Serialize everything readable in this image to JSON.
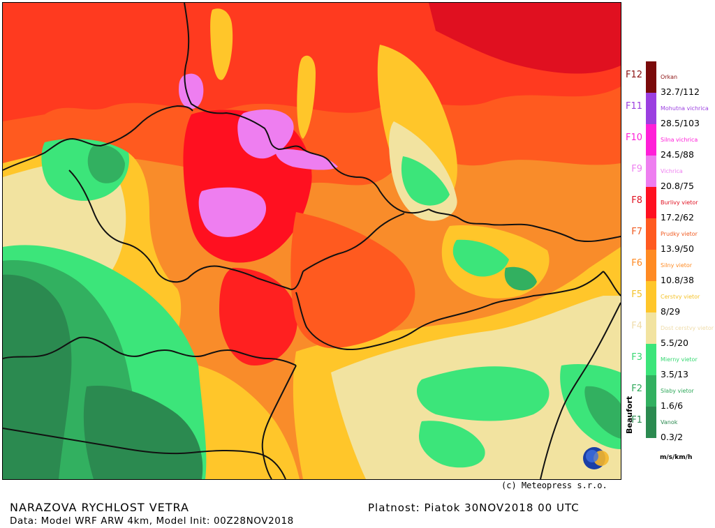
{
  "footer": {
    "title": "NARAZOVA RYCHLOST VETRA",
    "data_line": "Data: Model WRF ARW 4km, Model Init: 00Z28NOV2018",
    "validity": "Platnost: Piatok 30NOV2018 00 UTC",
    "copyright": "(c) Meteopress s.r.o."
  },
  "logo": {
    "text": "meteopress"
  },
  "legend": {
    "axis_label": "Beaufort",
    "units": "m/s/km/h",
    "classes": [
      {
        "force": "F12",
        "name": "Orkan",
        "color": "#7a0a0a",
        "force_color": "#8b1010"
      },
      {
        "force": "F11",
        "name": "Mohutna vichrica",
        "color": "#9b3fe0",
        "force_color": "#9b3fe0"
      },
      {
        "force": "F10",
        "name": "Silna vichrica",
        "color": "#ff1fd8",
        "force_color": "#ff1fd8"
      },
      {
        "force": "F9",
        "name": "Vichrica",
        "color": "#ee7ef0",
        "force_color": "#ee7ef0"
      },
      {
        "force": "F8",
        "name": "Burlivy vietor",
        "color": "#ff1020",
        "force_color": "#e01020"
      },
      {
        "force": "F7",
        "name": "Prudky vietor",
        "color": "#ff5a1f",
        "force_color": "#f05a20"
      },
      {
        "force": "F6",
        "name": "Silny vietor",
        "color": "#ff8a22",
        "force_color": "#ff8a22"
      },
      {
        "force": "F5",
        "name": "Cerstvy vietor",
        "color": "#ffc62a",
        "force_color": "#f4c22a"
      },
      {
        "force": "F4",
        "name": "Dost cerstvy vietor",
        "color": "#f2e3a0",
        "force_color": "#efdcaa"
      },
      {
        "force": "F3",
        "name": "Mierny vietor",
        "color": "#3ce57a",
        "force_color": "#36d872"
      },
      {
        "force": "F2",
        "name": "Slaby vietor",
        "color": "#32b060",
        "force_color": "#2fa85a"
      },
      {
        "force": "F1",
        "name": "Vanok",
        "color": "#2b8a50",
        "force_color": "#2b8a50"
      }
    ],
    "thresholds": [
      "32.7/112",
      "28.5/103",
      "24.5/88",
      "20.8/75",
      "17.2/62",
      "13.9/50",
      "10.8/38",
      "8/29",
      "5.5/20",
      "3.5/13",
      "1.6/6",
      "0.3/2"
    ]
  }
}
